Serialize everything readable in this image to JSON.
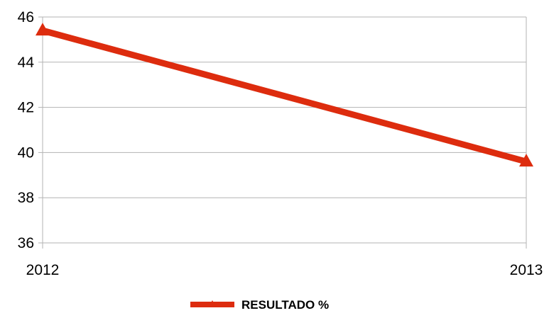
{
  "chart_data": {
    "type": "line",
    "categories": [
      "2012",
      "2013"
    ],
    "series": [
      {
        "name": "RESULTADO %",
        "values": [
          45.4,
          39.6
        ],
        "color": "#dd2c0e",
        "marker": "triangle"
      }
    ],
    "ylim": [
      36,
      46
    ],
    "yticks": [
      "36",
      "38",
      "40",
      "42",
      "44",
      "46"
    ],
    "grid": true,
    "legend": "bottom-center"
  }
}
